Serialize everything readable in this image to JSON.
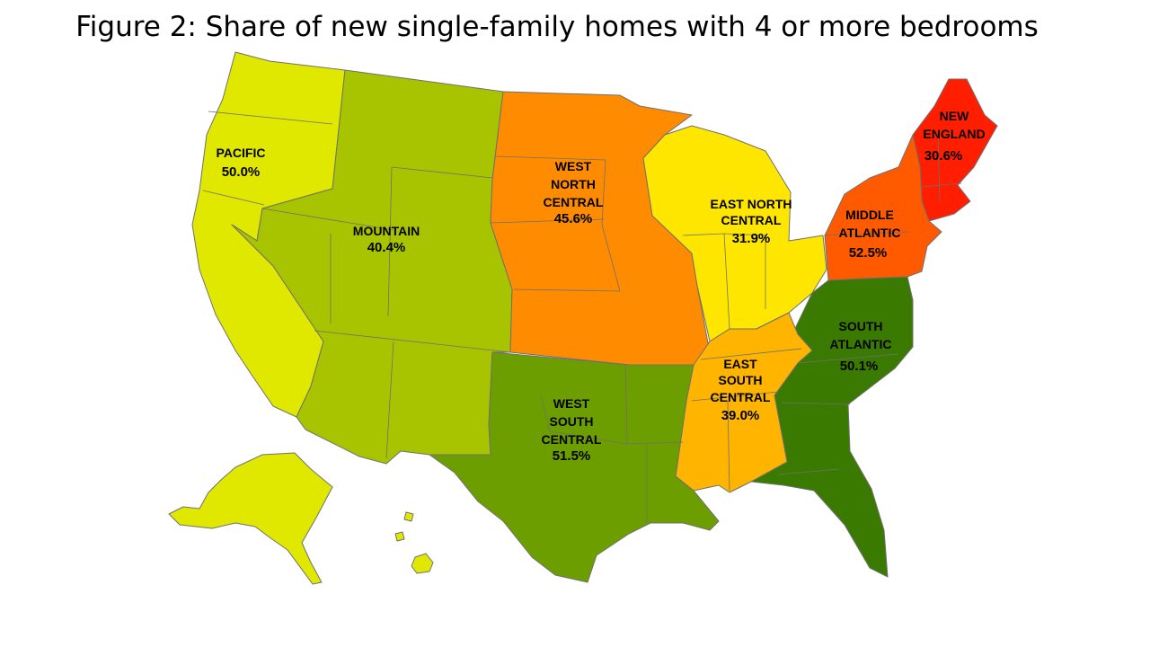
{
  "title": "Figure 2: Share of new single-family homes with 4 or more bedrooms",
  "regions": {
    "pacific": {
      "name": "PACIFIC",
      "value": "50.0%",
      "color": "#e0e800"
    },
    "mountain": {
      "name": "MOUNTAIN",
      "value": "40.4%",
      "color": "#a8c400"
    },
    "west_north_central": {
      "name_lines": [
        "WEST",
        "NORTH",
        "CENTRAL"
      ],
      "value": "45.6%",
      "color": "#ff8c00"
    },
    "east_north_central": {
      "name_lines": [
        "EAST NORTH",
        "CENTRAL"
      ],
      "value": "31.9%",
      "color": "#ffe600"
    },
    "middle_atlantic": {
      "name_lines": [
        "MIDDLE",
        "ATLANTIC"
      ],
      "value": "52.5%",
      "color": "#ff5a00"
    },
    "new_england": {
      "name_lines": [
        "NEW",
        "ENGLAND"
      ],
      "value": "30.6%",
      "color": "#ff1e00"
    },
    "south_atlantic": {
      "name_lines": [
        "SOUTH",
        "ATLANTIC"
      ],
      "value": "50.1%",
      "color": "#3a7a00"
    },
    "east_south_central": {
      "name_lines": [
        "EAST",
        "SOUTH",
        "CENTRAL"
      ],
      "value": "39.0%",
      "color": "#ffb400"
    },
    "west_south_central": {
      "name_lines": [
        "WEST",
        "SOUTH",
        "CENTRAL"
      ],
      "value": "51.5%",
      "color": "#6c9e00"
    }
  }
}
